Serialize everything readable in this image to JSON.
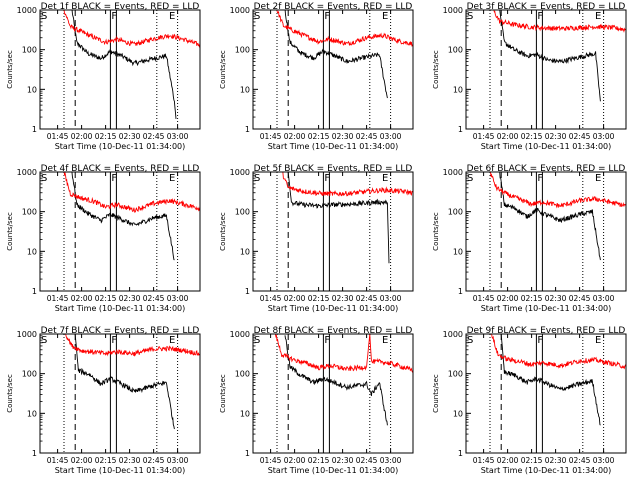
{
  "figure": {
    "xlabel": "Start Time (10-Dec-11 01:34:00)",
    "ylabel": "Counts/sec",
    "x_ticks": [
      "01:45",
      "02:00",
      "02:15",
      "02:30",
      "02:45",
      "03:00"
    ],
    "y_ticks": [
      "1",
      "10",
      "100",
      "1000"
    ],
    "marker_labels": [
      "S",
      "F",
      "E"
    ],
    "colors": {
      "events": "#000000",
      "lld": "#ff0000",
      "axes": "#000000"
    }
  },
  "chart_data": [
    {
      "type": "line",
      "title": "Det 1f BLACK = Events, RED = LLD",
      "xlim": [
        "01:34",
        "03:14"
      ],
      "ylim": [
        1,
        1000
      ],
      "yscale": "log",
      "markers": {
        "S": "01:34",
        "F": "02:18",
        "E": "02:54"
      },
      "series": [
        {
          "name": "Events",
          "color": "black",
          "points": [
            [
              "01:54",
              1000
            ],
            [
              "01:57",
              150
            ],
            [
              "02:04",
              80
            ],
            [
              "02:12",
              60
            ],
            [
              "02:18",
              90
            ],
            [
              "02:25",
              70
            ],
            [
              "02:33",
              45
            ],
            [
              "02:45",
              60
            ],
            [
              "02:53",
              70
            ],
            [
              "02:58",
              5
            ],
            [
              "02:59",
              1.8
            ]
          ]
        },
        {
          "name": "LLD",
          "color": "red",
          "points": [
            [
              "01:49",
              1000
            ],
            [
              "01:53",
              380
            ],
            [
              "02:00",
              280
            ],
            [
              "02:08",
              200
            ],
            [
              "02:15",
              155
            ],
            [
              "02:22",
              180
            ],
            [
              "02:33",
              135
            ],
            [
              "02:45",
              190
            ],
            [
              "02:55",
              230
            ],
            [
              "03:05",
              175
            ],
            [
              "03:14",
              130
            ]
          ]
        }
      ]
    },
    {
      "type": "line",
      "title": "Det 2f BLACK = Events, RED = LLD",
      "xlim": [
        "01:34",
        "03:14"
      ],
      "ylim": [
        1,
        1000
      ],
      "yscale": "log",
      "markers": {
        "S": "01:34",
        "F": "02:18",
        "E": "02:54"
      },
      "series": [
        {
          "name": "Events",
          "color": "black",
          "points": [
            [
              "01:54",
              1000
            ],
            [
              "01:57",
              155
            ],
            [
              "02:04",
              82
            ],
            [
              "02:12",
              62
            ],
            [
              "02:18",
              92
            ],
            [
              "02:25",
              70
            ],
            [
              "02:33",
              50
            ],
            [
              "02:45",
              65
            ],
            [
              "02:53",
              75
            ],
            [
              "02:58",
              6
            ]
          ]
        },
        {
          "name": "LLD",
          "color": "red",
          "points": [
            [
              "01:49",
              1000
            ],
            [
              "01:53",
              400
            ],
            [
              "02:00",
              290
            ],
            [
              "02:08",
              210
            ],
            [
              "02:15",
              160
            ],
            [
              "02:22",
              185
            ],
            [
              "02:33",
              140
            ],
            [
              "02:45",
              200
            ],
            [
              "02:55",
              230
            ],
            [
              "03:05",
              165
            ],
            [
              "03:14",
              140
            ]
          ]
        }
      ]
    },
    {
      "type": "line",
      "title": "Det 3f BLACK = Events, RED = LLD",
      "xlim": [
        "01:34",
        "03:14"
      ],
      "ylim": [
        1,
        1000
      ],
      "yscale": "log",
      "markers": {
        "S": "01:34",
        "F": "02:18",
        "E": "02:54"
      },
      "series": [
        {
          "name": "Events",
          "color": "black",
          "points": [
            [
              "01:55",
              1000
            ],
            [
              "01:58",
              150
            ],
            [
              "02:04",
              100
            ],
            [
              "02:12",
              70
            ],
            [
              "02:18",
              75
            ],
            [
              "02:25",
              55
            ],
            [
              "02:33",
              50
            ],
            [
              "02:45",
              65
            ],
            [
              "02:55",
              80
            ],
            [
              "02:58",
              5
            ]
          ]
        },
        {
          "name": "LLD",
          "color": "red",
          "points": [
            [
              "01:51",
              1000
            ],
            [
              "01:55",
              520
            ],
            [
              "02:05",
              420
            ],
            [
              "02:15",
              370
            ],
            [
              "02:25",
              350
            ],
            [
              "02:35",
              340
            ],
            [
              "02:45",
              360
            ],
            [
              "02:55",
              380
            ],
            [
              "03:05",
              360
            ],
            [
              "03:14",
              320
            ]
          ]
        }
      ]
    },
    {
      "type": "line",
      "title": "Det 4f BLACK = Events, RED = LLD",
      "xlim": [
        "01:34",
        "03:14"
      ],
      "ylim": [
        1,
        1000
      ],
      "yscale": "log",
      "markers": {
        "S": "01:34",
        "F": "02:18",
        "E": "02:54"
      },
      "series": [
        {
          "name": "Events",
          "color": "black",
          "points": [
            [
              "01:54",
              1000
            ],
            [
              "01:57",
              150
            ],
            [
              "02:04",
              90
            ],
            [
              "02:12",
              60
            ],
            [
              "02:18",
              85
            ],
            [
              "02:25",
              65
            ],
            [
              "02:33",
              45
            ],
            [
              "02:45",
              70
            ],
            [
              "02:53",
              80
            ],
            [
              "02:58",
              6
            ]
          ]
        },
        {
          "name": "LLD",
          "color": "red",
          "points": [
            [
              "01:49",
              1000
            ],
            [
              "01:53",
              280
            ],
            [
              "02:00",
              220
            ],
            [
              "02:08",
              180
            ],
            [
              "02:15",
              130
            ],
            [
              "02:22",
              150
            ],
            [
              "02:33",
              110
            ],
            [
              "02:45",
              160
            ],
            [
              "02:55",
              190
            ],
            [
              "03:05",
              150
            ],
            [
              "03:14",
              120
            ]
          ]
        }
      ]
    },
    {
      "type": "line",
      "title": "Det 5f BLACK = Events, RED = LLD",
      "xlim": [
        "01:34",
        "03:14"
      ],
      "ylim": [
        1,
        1000
      ],
      "yscale": "log",
      "markers": {
        "S": "01:34",
        "F": "02:18",
        "E": "02:54"
      },
      "series": [
        {
          "name": "Events",
          "color": "black",
          "points": [
            [
              "01:56",
              1000
            ],
            [
              "01:58",
              170
            ],
            [
              "02:05",
              150
            ],
            [
              "02:15",
              140
            ],
            [
              "02:25",
              150
            ],
            [
              "02:35",
              155
            ],
            [
              "02:45",
              165
            ],
            [
              "02:52",
              175
            ],
            [
              "02:58",
              170
            ],
            [
              "02:59",
              5
            ]
          ]
        },
        {
          "name": "LLD",
          "color": "red",
          "points": [
            [
              "01:52",
              1000
            ],
            [
              "01:56",
              400
            ],
            [
              "02:05",
              330
            ],
            [
              "02:15",
              290
            ],
            [
              "02:25",
              280
            ],
            [
              "02:35",
              290
            ],
            [
              "02:45",
              320
            ],
            [
              "02:55",
              350
            ],
            [
              "03:05",
              330
            ],
            [
              "03:14",
              300
            ]
          ]
        }
      ]
    },
    {
      "type": "line",
      "title": "Det 6f BLACK = Events, RED = LLD",
      "xlim": [
        "01:34",
        "03:14"
      ],
      "ylim": [
        1,
        1000
      ],
      "yscale": "log",
      "markers": {
        "S": "01:34",
        "F": "02:18",
        "E": "02:54"
      },
      "series": [
        {
          "name": "Events",
          "color": "black",
          "points": [
            [
              "01:55",
              1000
            ],
            [
              "01:58",
              150
            ],
            [
              "02:05",
              120
            ],
            [
              "02:12",
              75
            ],
            [
              "02:18",
              110
            ],
            [
              "02:25",
              80
            ],
            [
              "02:33",
              60
            ],
            [
              "02:45",
              85
            ],
            [
              "02:53",
              100
            ],
            [
              "02:58",
              6
            ]
          ]
        },
        {
          "name": "LLD",
          "color": "red",
          "points": [
            [
              "01:49",
              1000
            ],
            [
              "01:53",
              400
            ],
            [
              "02:00",
              270
            ],
            [
              "02:08",
              200
            ],
            [
              "02:15",
              155
            ],
            [
              "02:22",
              175
            ],
            [
              "02:33",
              140
            ],
            [
              "02:45",
              190
            ],
            [
              "02:55",
              210
            ],
            [
              "03:05",
              170
            ],
            [
              "03:14",
              140
            ]
          ]
        }
      ]
    },
    {
      "type": "line",
      "title": "Det 7f BLACK = Events, RED = LLD",
      "xlim": [
        "01:34",
        "03:14"
      ],
      "ylim": [
        1,
        1000
      ],
      "yscale": "log",
      "markers": {
        "S": "01:34",
        "F": "02:18",
        "E": "02:54"
      },
      "series": [
        {
          "name": "Events",
          "color": "black",
          "points": [
            [
              "01:56",
              1000
            ],
            [
              "01:58",
              120
            ],
            [
              "02:05",
              95
            ],
            [
              "02:12",
              55
            ],
            [
              "02:18",
              75
            ],
            [
              "02:25",
              55
            ],
            [
              "02:33",
              35
            ],
            [
              "02:45",
              50
            ],
            [
              "02:53",
              60
            ],
            [
              "02:58",
              4
            ]
          ]
        },
        {
          "name": "LLD",
          "color": "red",
          "points": [
            [
              "01:50",
              1000
            ],
            [
              "01:54",
              500
            ],
            [
              "02:00",
              380
            ],
            [
              "02:08",
              350
            ],
            [
              "02:15",
              320
            ],
            [
              "02:22",
              360
            ],
            [
              "02:33",
              320
            ],
            [
              "02:45",
              420
            ],
            [
              "02:55",
              430
            ],
            [
              "03:05",
              380
            ],
            [
              "03:14",
              310
            ]
          ]
        }
      ]
    },
    {
      "type": "line",
      "title": "Det 8f BLACK = Events, RED = LLD",
      "xlim": [
        "01:34",
        "03:14"
      ],
      "ylim": [
        1,
        1000
      ],
      "yscale": "log",
      "markers": {
        "S": "01:34",
        "F": "02:18",
        "E": "02:54"
      },
      "series": [
        {
          "name": "Events",
          "color": "black",
          "points": [
            [
              "01:54",
              1000
            ],
            [
              "01:57",
              150
            ],
            [
              "02:04",
              90
            ],
            [
              "02:12",
              60
            ],
            [
              "02:18",
              75
            ],
            [
              "02:25",
              60
            ],
            [
              "02:33",
              45
            ],
            [
              "02:45",
              55
            ],
            [
              "02:48",
              30
            ],
            [
              "02:53",
              60
            ],
            [
              "02:58",
              5
            ]
          ]
        },
        {
          "name": "LLD",
          "color": "red",
          "points": [
            [
              "01:48",
              1000
            ],
            [
              "01:52",
              300
            ],
            [
              "02:00",
              220
            ],
            [
              "02:08",
              180
            ],
            [
              "02:15",
              140
            ],
            [
              "02:22",
              160
            ],
            [
              "02:33",
              130
            ],
            [
              "02:45",
              150
            ],
            [
              "02:47",
              1000
            ],
            [
              "02:48",
              200
            ],
            [
              "02:55",
              200
            ],
            [
              "03:05",
              160
            ],
            [
              "03:14",
              120
            ]
          ]
        }
      ]
    },
    {
      "type": "line",
      "title": "Det 9f BLACK = Events, RED = LLD",
      "xlim": [
        "01:34",
        "03:14"
      ],
      "ylim": [
        1,
        1000
      ],
      "yscale": "log",
      "markers": {
        "S": "01:34",
        "F": "02:18",
        "E": "02:54"
      },
      "series": [
        {
          "name": "Events",
          "color": "black",
          "points": [
            [
              "01:56",
              1000
            ],
            [
              "01:58",
              110
            ],
            [
              "02:05",
              90
            ],
            [
              "02:12",
              60
            ],
            [
              "02:18",
              75
            ],
            [
              "02:25",
              55
            ],
            [
              "02:33",
              40
            ],
            [
              "02:45",
              55
            ],
            [
              "02:53",
              65
            ],
            [
              "02:58",
              5
            ]
          ]
        },
        {
          "name": "LLD",
          "color": "red",
          "points": [
            [
              "01:50",
              1000
            ],
            [
              "01:54",
              300
            ],
            [
              "02:00",
              230
            ],
            [
              "02:08",
              200
            ],
            [
              "02:15",
              170
            ],
            [
              "02:22",
              190
            ],
            [
              "02:33",
              160
            ],
            [
              "02:45",
              210
            ],
            [
              "02:55",
              220
            ],
            [
              "03:05",
              180
            ],
            [
              "03:14",
              150
            ]
          ]
        }
      ]
    }
  ]
}
